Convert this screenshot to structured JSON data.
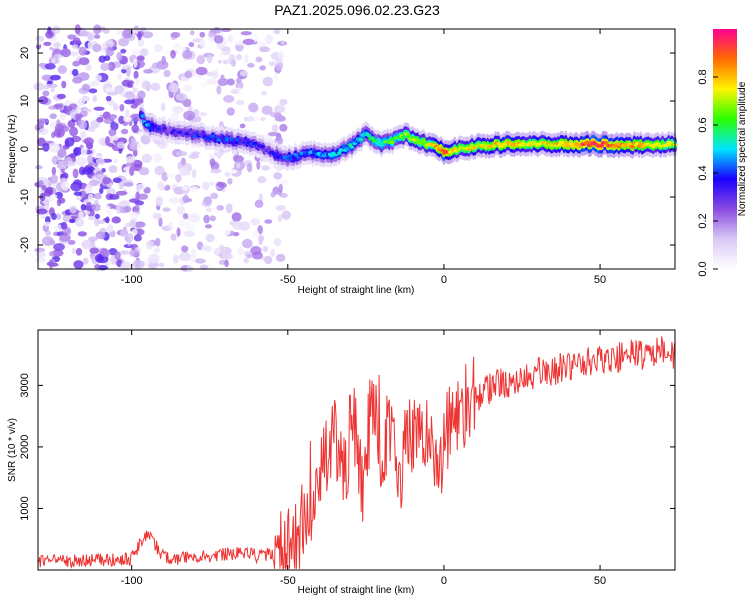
{
  "title": "PAZ1.2025.096.02.23.G23",
  "chart_data": [
    {
      "type": "heatmap",
      "xlabel": "Height of straight line (km)",
      "ylabel": "Frequency (Hz)",
      "xlim": [
        -130,
        74
      ],
      "ylim": [
        -25,
        25
      ],
      "xticks": [
        -100,
        -50,
        0,
        50
      ],
      "yticks": [
        -20,
        -10,
        0,
        10,
        20
      ],
      "colorbar": {
        "label": "Normalized spectral amplitude",
        "range": [
          0,
          1
        ],
        "ticks": [
          0.0,
          0.2,
          0.4,
          0.6,
          0.8
        ],
        "tick_labels": [
          "0.0",
          "0.2",
          "0.4",
          "0.6",
          "0.8"
        ],
        "colormap": [
          "#ffffff",
          "#d9c8f6",
          "#8a4be0",
          "#1a00ff",
          "#00e5ff",
          "#2aff00",
          "#fff400",
          "#ff6a00",
          "#ff0090"
        ]
      },
      "ridge": {
        "x": [
          -97,
          -95,
          -90,
          -80,
          -70,
          -60,
          -55,
          -50,
          -45,
          -40,
          -35,
          -30,
          -25,
          -20,
          -15,
          -12,
          -10,
          -5,
          0,
          5,
          10,
          20,
          30,
          40,
          50,
          60,
          74
        ],
        "freq": [
          7,
          5,
          4,
          3,
          2,
          1,
          -1,
          -2,
          -1,
          -1,
          -1,
          0.5,
          3,
          1,
          2,
          3,
          2,
          1,
          -0.5,
          0,
          0.5,
          1,
          1,
          1,
          1,
          0.8,
          1
        ],
        "amplitude": [
          0.4,
          0.45,
          0.3,
          0.35,
          0.4,
          0.35,
          0.3,
          0.4,
          0.4,
          0.45,
          0.45,
          0.5,
          0.5,
          0.6,
          0.6,
          0.7,
          0.7,
          0.7,
          0.9,
          0.7,
          0.75,
          0.8,
          0.75,
          0.8,
          0.95,
          0.8,
          0.7
        ]
      }
    },
    {
      "type": "line",
      "xlabel": "Height of straight line (km)",
      "ylabel": "SNR (10 * v/v)",
      "xlim": [
        -130,
        74
      ],
      "ylim": [
        0,
        3900
      ],
      "xticks": [
        -100,
        -50,
        0,
        50
      ],
      "yticks": [
        1000,
        2000,
        3000
      ],
      "series": [
        {
          "color": "#ee3333",
          "x": [
            -130,
            -120,
            -110,
            -100,
            -95,
            -90,
            -85,
            -80,
            -75,
            -70,
            -65,
            -60,
            -55,
            -50,
            -47,
            -44,
            -41,
            -38,
            -35,
            -32,
            -29,
            -26,
            -23,
            -20,
            -17,
            -14,
            -11,
            -8,
            -5,
            -2,
            1,
            4,
            7,
            10,
            13,
            16,
            20,
            25,
            30,
            35,
            40,
            45,
            50,
            55,
            60,
            65,
            70,
            74
          ],
          "values": [
            130,
            150,
            160,
            190,
            600,
            220,
            170,
            240,
            220,
            250,
            300,
            230,
            260,
            280,
            520,
            900,
            1300,
            1700,
            2100,
            1500,
            2600,
            1200,
            2900,
            1800,
            2500,
            1600,
            2300,
            2000,
            2200,
            1700,
            2200,
            2600,
            2700,
            2800,
            2900,
            3000,
            3050,
            3100,
            3200,
            3250,
            3300,
            3350,
            3400,
            3450,
            3500,
            3500,
            3550,
            3500
          ]
        }
      ]
    }
  ]
}
